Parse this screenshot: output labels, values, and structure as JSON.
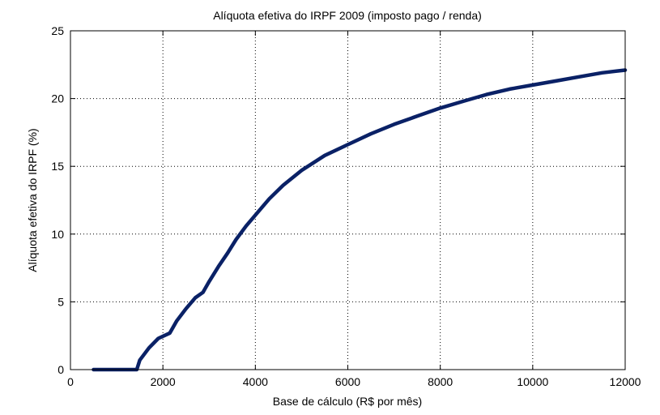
{
  "chart_data": {
    "type": "line",
    "title": "Alíquota efetiva do IRPF 2009 (imposto pago / renda)",
    "xlabel": "Base de cálculo (R$ por mês)",
    "ylabel": "Alíquota efetiva do IRPF (%)",
    "xlim": [
      0,
      12000
    ],
    "ylim": [
      0,
      25
    ],
    "xticks": [
      0,
      2000,
      4000,
      6000,
      8000,
      10000,
      12000
    ],
    "yticks": [
      0,
      5,
      10,
      15,
      20,
      25
    ],
    "grid": true,
    "line_color": "#0a2166",
    "series": [
      {
        "x": [
          500,
          1000,
          1434,
          1500,
          1700,
          1900,
          2150,
          2300,
          2500,
          2700,
          2866,
          3000,
          3200,
          3400,
          3582,
          3800,
          4000,
          4300,
          4600,
          5000,
          5500,
          6000,
          6500,
          7000,
          7500,
          8000,
          8500,
          9000,
          9500,
          10000,
          10500,
          11000,
          11500,
          12000
        ],
        "y": [
          0,
          0,
          0,
          0.7,
          1.6,
          2.3,
          2.7,
          3.6,
          4.5,
          5.3,
          5.7,
          6.5,
          7.6,
          8.6,
          9.6,
          10.6,
          11.4,
          12.6,
          13.6,
          14.7,
          15.8,
          16.6,
          17.4,
          18.1,
          18.7,
          19.3,
          19.8,
          20.3,
          20.7,
          21.0,
          21.3,
          21.6,
          21.9,
          22.1
        ]
      }
    ]
  }
}
